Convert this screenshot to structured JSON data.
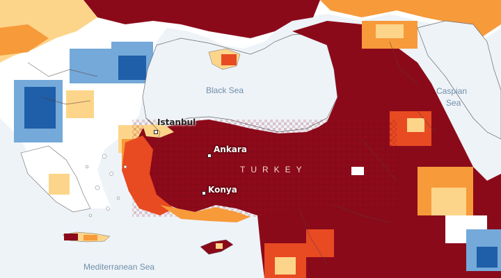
{
  "map": {
    "seas": {
      "black_sea": "Black Sea",
      "caspian_line1": "Caspian",
      "caspian_line2": "Sea",
      "mediterranean": "Mediterranean Sea"
    },
    "country": "TURKEY",
    "cities": {
      "istanbul": "Istanbul",
      "ankara": "Ankara",
      "konya": "Konya"
    },
    "colors": {
      "water": "#eef3f8",
      "anomaly_extreme_dry": "#8b0a1a",
      "anomaly_dry": "#e84a22",
      "anomaly_moderate": "#f79a3a",
      "anomaly_slight": "#fdd58a",
      "anomaly_neutral": "#ffffff",
      "anomaly_wet": "#74a9d9",
      "anomaly_very_wet": "#1f5ea8"
    }
  }
}
